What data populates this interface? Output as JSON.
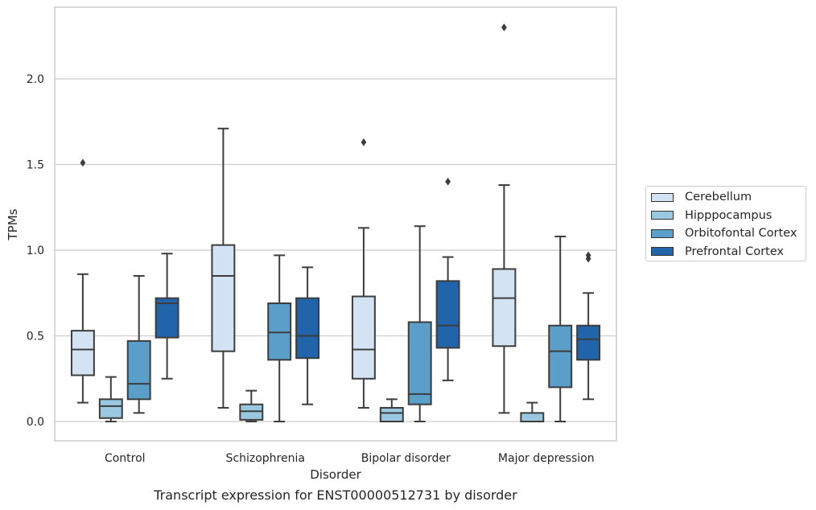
{
  "chart_data": {
    "type": "box",
    "title": "",
    "caption": "Transcript expression for ENST00000512731 by disorder",
    "xlabel": "Disorder",
    "ylabel": "TPMs",
    "ylim": [
      -0.11,
      2.42
    ],
    "yticks": [
      "0.0",
      "0.5",
      "1.0",
      "1.5",
      "2.0"
    ],
    "ytick_values": [
      0.0,
      0.5,
      1.0,
      1.5,
      2.0
    ],
    "grid": true,
    "legend_position": "outside-right",
    "categories": [
      "Control",
      "Schizophrenia",
      "Bipolar disorder",
      "Major depression"
    ],
    "series": [
      {
        "name": "Cerebellum",
        "color": "#d3e3f3",
        "boxes": [
          {
            "whislo": 0.11,
            "q1": 0.27,
            "med": 0.42,
            "q3": 0.53,
            "whishi": 0.86,
            "fliers": [
              1.51
            ]
          },
          {
            "whislo": 0.08,
            "q1": 0.41,
            "med": 0.85,
            "q3": 1.03,
            "whishi": 1.71,
            "fliers": []
          },
          {
            "whislo": 0.08,
            "q1": 0.25,
            "med": 0.42,
            "q3": 0.73,
            "whishi": 1.13,
            "fliers": [
              1.63
            ]
          },
          {
            "whislo": 0.05,
            "q1": 0.44,
            "med": 0.72,
            "q3": 0.89,
            "whishi": 1.38,
            "fliers": [
              2.3
            ]
          }
        ]
      },
      {
        "name": "Hipppocampus",
        "color": "#9ac8e0",
        "boxes": [
          {
            "whislo": 0.0,
            "q1": 0.02,
            "med": 0.09,
            "q3": 0.13,
            "whishi": 0.26,
            "fliers": []
          },
          {
            "whislo": 0.0,
            "q1": 0.01,
            "med": 0.06,
            "q3": 0.1,
            "whishi": 0.18,
            "fliers": []
          },
          {
            "whislo": 0.0,
            "q1": 0.0,
            "med": 0.05,
            "q3": 0.08,
            "whishi": 0.13,
            "fliers": []
          },
          {
            "whislo": 0.0,
            "q1": 0.0,
            "med": 0.0,
            "q3": 0.05,
            "whishi": 0.11,
            "fliers": []
          }
        ]
      },
      {
        "name": "Orbitofontal Cortex",
        "color": "#5a9ec9",
        "boxes": [
          {
            "whislo": 0.05,
            "q1": 0.13,
            "med": 0.22,
            "q3": 0.47,
            "whishi": 0.85,
            "fliers": []
          },
          {
            "whislo": 0.0,
            "q1": 0.36,
            "med": 0.52,
            "q3": 0.69,
            "whishi": 0.97,
            "fliers": []
          },
          {
            "whislo": 0.0,
            "q1": 0.1,
            "med": 0.16,
            "q3": 0.58,
            "whishi": 1.14,
            "fliers": []
          },
          {
            "whislo": 0.0,
            "q1": 0.2,
            "med": 0.41,
            "q3": 0.56,
            "whishi": 1.08,
            "fliers": []
          }
        ]
      },
      {
        "name": "Prefrontal Cortex",
        "color": "#2264a9",
        "boxes": [
          {
            "whislo": 0.25,
            "q1": 0.49,
            "med": 0.69,
            "q3": 0.72,
            "whishi": 0.98,
            "fliers": []
          },
          {
            "whislo": 0.1,
            "q1": 0.37,
            "med": 0.5,
            "q3": 0.72,
            "whishi": 0.9,
            "fliers": []
          },
          {
            "whislo": 0.24,
            "q1": 0.43,
            "med": 0.56,
            "q3": 0.82,
            "whishi": 0.96,
            "fliers": [
              1.4
            ]
          },
          {
            "whislo": 0.13,
            "q1": 0.36,
            "med": 0.48,
            "q3": 0.56,
            "whishi": 0.75,
            "fliers": [
              0.95,
              0.97
            ]
          }
        ]
      }
    ]
  }
}
